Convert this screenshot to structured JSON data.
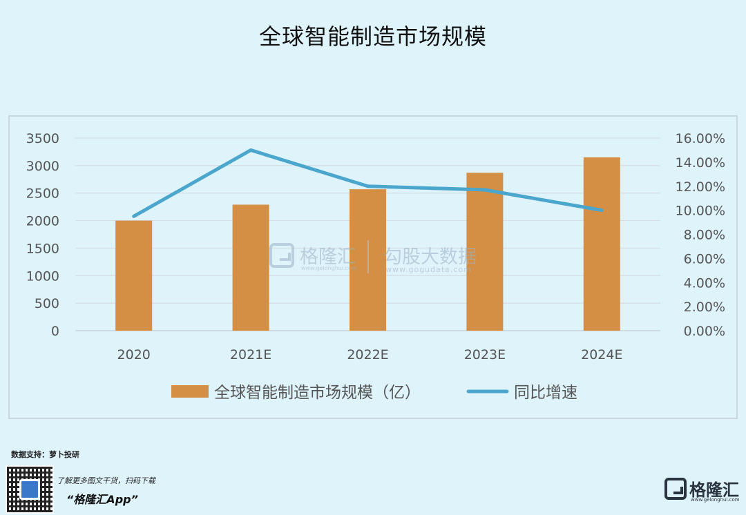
{
  "page": {
    "title": "全球智能制造市场规模",
    "source": "数据支持：萝卜投研",
    "promo_line1": "了解更多图文干货，扫码下载",
    "promo_line2": "“格隆汇App”",
    "brand_name": "格隆汇",
    "brand_url": "www.gelonghui.com"
  },
  "watermark": {
    "logo_text": "格隆汇",
    "logo_url": "www.gelonghui.com",
    "partner_text": "勾股大数据",
    "partner_url": "www.gogudata.com"
  },
  "chart_data": {
    "type": "bar",
    "title": "全球智能制造市场规模",
    "categories": [
      "2020",
      "2021E",
      "2022E",
      "2023E",
      "2024E"
    ],
    "series": [
      {
        "name": "全球智能制造市场规模（亿）",
        "type": "bar",
        "axis": "left",
        "color": "#d48f44",
        "values": [
          2000,
          2290,
          2570,
          2870,
          3150
        ]
      },
      {
        "name": "同比增速",
        "type": "line",
        "axis": "right",
        "color": "#4aa6cc",
        "values": [
          0.095,
          0.15,
          0.12,
          0.117,
          0.1
        ]
      }
    ],
    "y_left": {
      "min": 0,
      "max": 3500,
      "ticks": [
        "0",
        "500",
        "1000",
        "1500",
        "2000",
        "2500",
        "3000",
        "3500"
      ]
    },
    "y_right": {
      "min": 0,
      "max": 0.16,
      "ticks": [
        "0.00%",
        "2.00%",
        "4.00%",
        "6.00%",
        "8.00%",
        "10.00%",
        "12.00%",
        "14.00%",
        "16.00%"
      ]
    },
    "grid": true,
    "legend_position": "bottom"
  }
}
